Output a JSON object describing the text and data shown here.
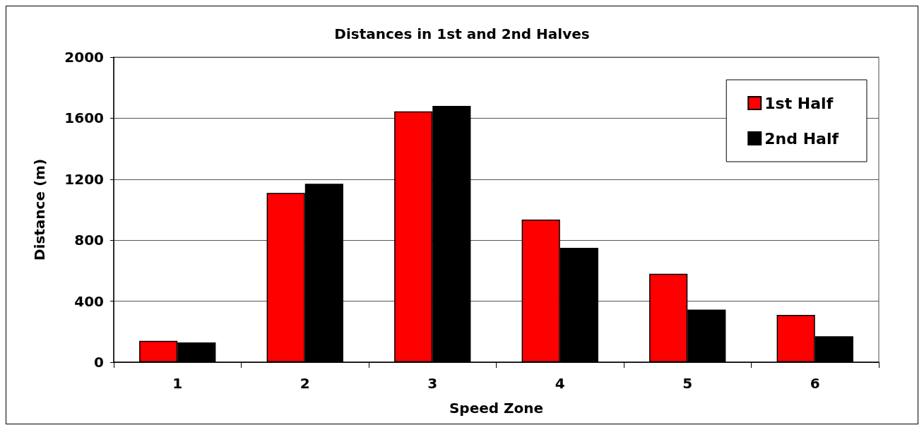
{
  "chart_data": {
    "type": "bar",
    "title": "Distances in 1st and 2nd Halves",
    "xlabel": "Speed Zone",
    "ylabel": "Distance (m)",
    "categories": [
      "1",
      "2",
      "3",
      "4",
      "5",
      "6"
    ],
    "series": [
      {
        "name": "1st Half",
        "color": "#ff0000",
        "values": [
          140,
          1110,
          1645,
          935,
          580,
          310
        ]
      },
      {
        "name": "2nd Half",
        "color": "#000000",
        "values": [
          130,
          1170,
          1680,
          750,
          345,
          170
        ]
      }
    ],
    "ylim": [
      0,
      2000
    ],
    "yticks": [
      0,
      400,
      800,
      1200,
      1600,
      2000
    ],
    "grid": "y",
    "legend": "top right"
  }
}
